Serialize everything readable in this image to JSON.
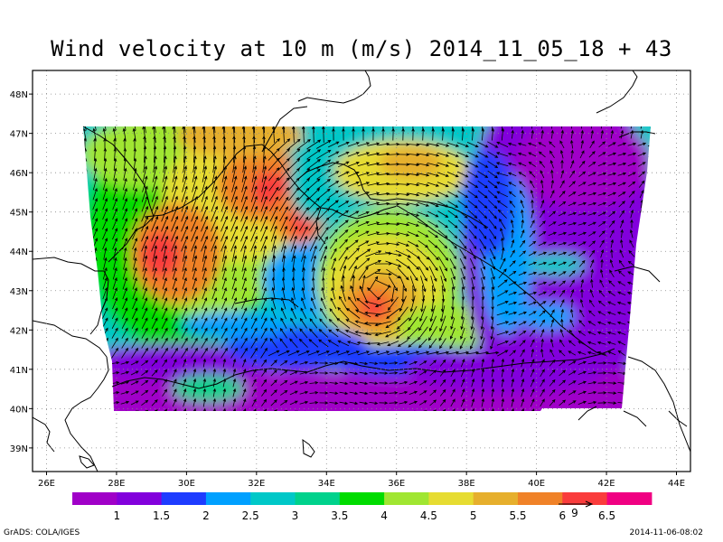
{
  "title": "Wind velocity at 10 m (m/s) 2014_11_05_18 + 43",
  "footer": {
    "left": "GrADS: COLA/IGES",
    "right": "2014-11-06-08:02"
  },
  "map": {
    "lon_range": [
      25.6,
      44.4
    ],
    "lat_range": [
      38.4,
      48.6
    ],
    "lon_ticks": [
      "26E",
      "28E",
      "30E",
      "32E",
      "34E",
      "36E",
      "38E",
      "40E",
      "42E",
      "44E"
    ],
    "lat_ticks": [
      "39N",
      "40N",
      "41N",
      "42N",
      "43N",
      "44N",
      "45N",
      "46N",
      "47N",
      "48N"
    ],
    "grid": true
  },
  "legend": {
    "labels": [
      "1",
      "1.5",
      "2",
      "2.5",
      "3",
      "3.5",
      "4",
      "4.5",
      "5",
      "5.5",
      "6",
      "6.5"
    ],
    "colors": [
      "#a000c8",
      "#8200dc",
      "#1e3cff",
      "#00a0ff",
      "#00c8c8",
      "#00d28c",
      "#00dc00",
      "#a0e632",
      "#e6dc32",
      "#e6af2d",
      "#f08228",
      "#fa3c3c",
      "#f00082"
    ],
    "reference_vector": "9"
  },
  "chart_data": {
    "type": "heatmap",
    "variable": "Wind velocity at 10 m (m/s)",
    "valid_time": "2014_11_05_18 + 43",
    "levels": [
      1,
      1.5,
      2,
      2.5,
      3,
      3.5,
      4,
      4.5,
      5,
      5.5,
      6,
      6.5
    ],
    "wind_maxima": [
      {
        "lon": 29.0,
        "lat": 43.9,
        "speed": 6.5
      },
      {
        "lon": 31.4,
        "lat": 45.4,
        "speed": 6.0
      },
      {
        "lon": 33.0,
        "lat": 44.7,
        "speed": 6.5
      },
      {
        "lon": 35.4,
        "lat": 42.6,
        "speed": 6.5
      },
      {
        "lon": 36.3,
        "lat": 46.2,
        "speed": 5.5
      }
    ],
    "calm_regions": [
      {
        "lon": 41.5,
        "lat": 44.5,
        "speed": 1.0
      },
      {
        "lon": 32.0,
        "lat": 40.6,
        "speed": 1.0
      }
    ]
  }
}
